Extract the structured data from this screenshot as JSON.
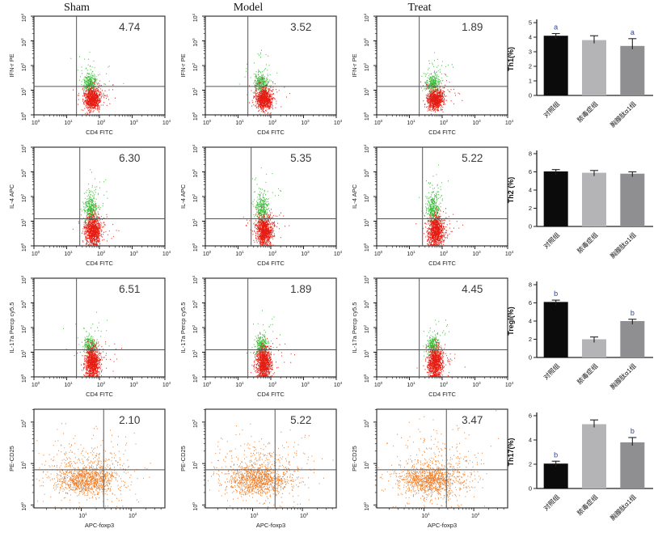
{
  "figure": {
    "column_titles": [
      "Sham",
      "Model",
      "Treat"
    ],
    "group_labels": [
      "对照组",
      "脓毒症组",
      "胸腺肽α1组"
    ]
  },
  "colors": {
    "green_dots": "#3fbf3f",
    "red_dots": "#e41c12",
    "orange_dots": "#ef7d28",
    "bar_fill": [
      "#0b0b0b",
      "#b4b4b6",
      "#8f8f91"
    ],
    "sig_letter": "#2e3f93",
    "axis": "#222222",
    "quadrant_line": "#555555",
    "value_text": "#3a3a3a"
  },
  "chart_data": [
    {
      "type": "scatter",
      "subtype": "flow-cytometry-quadrant",
      "xlabel": "CD4 FITC",
      "ylabel": "IFN-r PE",
      "columns": [
        "Sham",
        "Model",
        "Treat"
      ],
      "quadrant_percent_upper_right": [
        "4.74",
        "3.52",
        "1.89"
      ],
      "xlog_range": [
        0,
        4
      ],
      "ylog_range": [
        0,
        4
      ],
      "x_major_ticks": [
        0,
        1,
        2,
        3,
        4
      ],
      "y_major_ticks": [
        0,
        1,
        2,
        3,
        4
      ],
      "quad_x_log": 1.3,
      "quad_y_log": 1.15,
      "clusters": [
        {
          "color": "#3fbf3f",
          "n": 300,
          "cx": 1.7,
          "cy": 1.28,
          "sx": 0.1,
          "sy": 0.2
        },
        {
          "color": "#3fbf3f",
          "n": 35,
          "cx": 1.78,
          "cy": 1.7,
          "sx": 0.28,
          "sy": 0.45
        },
        {
          "color": "#e41c12",
          "n": 850,
          "cx": 1.78,
          "cy": 0.62,
          "sx": 0.12,
          "sy": 0.2
        },
        {
          "color": "#e41c12",
          "n": 70,
          "cx": 1.85,
          "cy": 0.85,
          "sx": 0.28,
          "sy": 0.28
        }
      ]
    },
    {
      "type": "scatter",
      "subtype": "flow-cytometry-quadrant",
      "xlabel": "CD4 FITC",
      "ylabel": "IL-4 APC",
      "columns": [
        "Sham",
        "Model",
        "Treat"
      ],
      "quadrant_percent_upper_right": [
        "6.30",
        "5.35",
        "5.22"
      ],
      "xlog_range": [
        0,
        4
      ],
      "ylog_range": [
        0,
        4
      ],
      "x_major_ticks": [
        0,
        1,
        2,
        3,
        4
      ],
      "y_major_ticks": [
        0,
        1,
        2,
        3,
        4
      ],
      "quad_x_log": 1.4,
      "quad_y_log": 1.1,
      "clusters": [
        {
          "color": "#3fbf3f",
          "n": 320,
          "cx": 1.72,
          "cy": 1.5,
          "sx": 0.1,
          "sy": 0.3
        },
        {
          "color": "#3fbf3f",
          "n": 30,
          "cx": 1.8,
          "cy": 2.3,
          "sx": 0.25,
          "sy": 0.45
        },
        {
          "color": "#e41c12",
          "n": 950,
          "cx": 1.8,
          "cy": 0.6,
          "sx": 0.12,
          "sy": 0.3
        },
        {
          "color": "#e41c12",
          "n": 60,
          "cx": 1.92,
          "cy": 0.85,
          "sx": 0.3,
          "sy": 0.3
        }
      ]
    },
    {
      "type": "scatter",
      "subtype": "flow-cytometry-quadrant",
      "xlabel": "CD4 FITC",
      "ylabel": "IL-17a Percp cy5.5",
      "columns": [
        "Sham",
        "Model",
        "Treat"
      ],
      "quadrant_percent_upper_right": [
        "6.51",
        "1.89",
        "4.45"
      ],
      "xlog_range": [
        0,
        4
      ],
      "ylog_range": [
        0,
        4
      ],
      "x_major_ticks": [
        0,
        1,
        2,
        3,
        4
      ],
      "y_major_ticks": [
        0,
        1,
        2,
        3,
        4
      ],
      "quad_x_log": 1.3,
      "quad_y_log": 1.1,
      "clusters": [
        {
          "color": "#3fbf3f",
          "n": 280,
          "cx": 1.7,
          "cy": 1.25,
          "sx": 0.09,
          "sy": 0.2
        },
        {
          "color": "#3fbf3f",
          "n": 20,
          "cx": 1.85,
          "cy": 1.8,
          "sx": 0.3,
          "sy": 0.35
        },
        {
          "color": "#e41c12",
          "n": 950,
          "cx": 1.78,
          "cy": 0.55,
          "sx": 0.11,
          "sy": 0.32
        },
        {
          "color": "#e41c12",
          "n": 60,
          "cx": 1.9,
          "cy": 0.8,
          "sx": 0.28,
          "sy": 0.3
        }
      ]
    },
    {
      "type": "scatter",
      "subtype": "flow-cytometry-quadrant",
      "xlabel": "APC-foxp3",
      "ylabel": "PE-CD25",
      "columns": [
        "Sham",
        "Model",
        "Treat"
      ],
      "quadrant_percent_upper_right": [
        "2.10",
        "5.22",
        "3.47"
      ],
      "xlog_range": [
        0.05,
        2.68
      ],
      "ylog_range": [
        -0.07,
        2.31
      ],
      "x_major_ticks": [
        1,
        2
      ],
      "y_major_ticks": [
        0,
        1,
        2
      ],
      "quad_x_log": 1.45,
      "quad_y_log": 0.85,
      "clusters": [
        {
          "color": "#ef7d28",
          "n": 950,
          "cx": 1.12,
          "cy": 0.6,
          "sx": 0.3,
          "sy": 0.18
        },
        {
          "color": "#ef7d28",
          "n": 400,
          "cx": 1.18,
          "cy": 0.85,
          "sx": 0.5,
          "sy": 0.45
        }
      ]
    },
    {
      "type": "bar",
      "ylabel": "Th1(%)",
      "categories": [
        "对照组",
        "脓毒症组",
        "胸腺肽α1组"
      ],
      "values": [
        4.1,
        3.8,
        3.4
      ],
      "errors": [
        0.15,
        0.3,
        0.5
      ],
      "sig_letters": [
        "a",
        "",
        "a"
      ],
      "ylim": [
        0,
        5
      ],
      "yticks": [
        0,
        1,
        2,
        3,
        4,
        5
      ]
    },
    {
      "type": "bar",
      "ylabel": "Th2 (%)",
      "categories": [
        "对照组",
        "脓毒症组",
        "胸腺肽α1组"
      ],
      "values": [
        6.05,
        5.9,
        5.8
      ],
      "errors": [
        0.2,
        0.25,
        0.2
      ],
      "sig_letters": [
        "",
        "",
        ""
      ],
      "ylim": [
        0,
        8
      ],
      "yticks": [
        0,
        2,
        4,
        6,
        8
      ]
    },
    {
      "type": "bar",
      "ylabel": "Tregl(%)",
      "categories": [
        "对照组",
        "脓毒症组",
        "胸腺肽α1组"
      ],
      "values": [
        6.1,
        2.0,
        4.0
      ],
      "errors": [
        0.2,
        0.25,
        0.2
      ],
      "sig_letters": [
        "b",
        "",
        "b"
      ],
      "ylim": [
        0,
        8
      ],
      "yticks": [
        0,
        2,
        4,
        6,
        8
      ]
    },
    {
      "type": "bar",
      "ylabel": "Th17(%)",
      "categories": [
        "对照组",
        "脓毒症组",
        "胸腺肽α1组"
      ],
      "values": [
        2.05,
        5.3,
        3.8
      ],
      "errors": [
        0.2,
        0.35,
        0.4
      ],
      "sig_letters": [
        "b",
        "",
        "b"
      ],
      "ylim": [
        0,
        6
      ],
      "yticks": [
        0,
        2,
        4,
        6
      ]
    }
  ]
}
